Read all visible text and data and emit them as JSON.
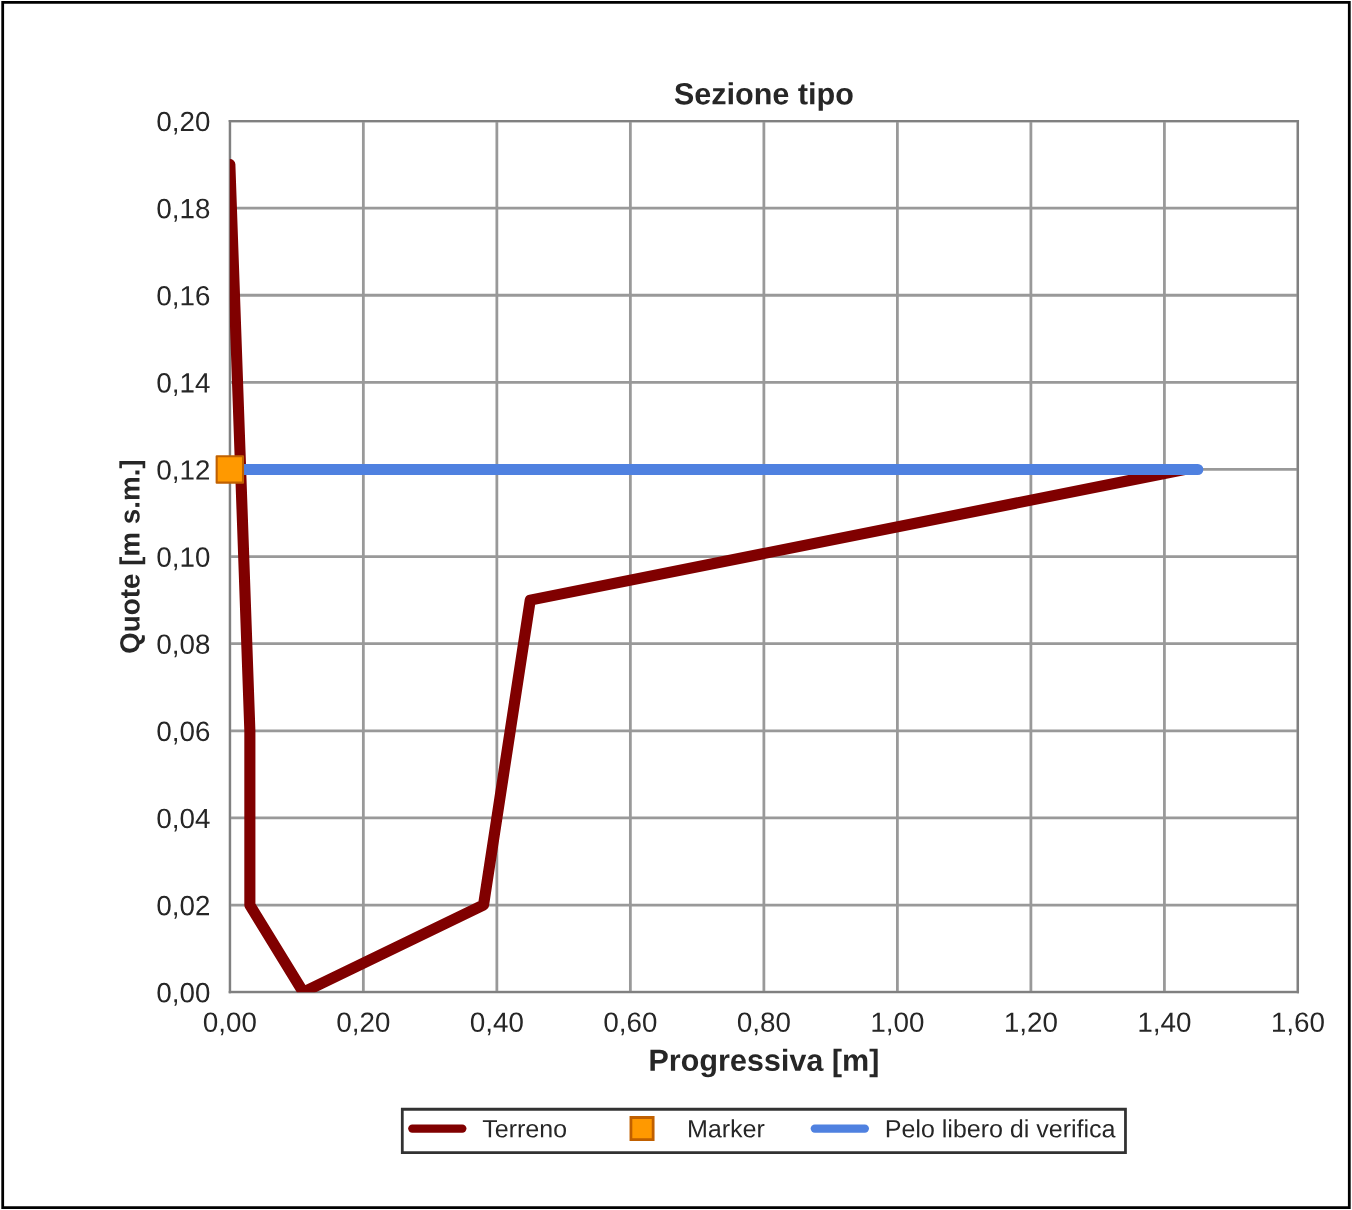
{
  "chart_data": {
    "type": "line",
    "title": "Sezione tipo",
    "xlabel": "Progressiva [m]",
    "ylabel": "Quote [m s.m.]",
    "series": [
      {
        "name": "Terreno",
        "color": "#800000",
        "x": [
          0,
          0.03,
          0.03,
          0.11,
          0.38,
          0.45,
          1.43
        ],
        "values": [
          0.19,
          0.06,
          0.02,
          0.0,
          0.02,
          0.09,
          0.12
        ],
        "marker": "none"
      },
      {
        "name": "Marker",
        "type": "scatter",
        "color": "#ff9900",
        "x": [
          0
        ],
        "values": [
          0.12
        ],
        "marker": "square"
      },
      {
        "name": "Pelo libero di verifica",
        "color": "#4f81e0",
        "x": [
          0,
          1.45
        ],
        "values": [
          0.12,
          0.12
        ],
        "marker": "none"
      }
    ],
    "xlim": [
      0,
      1.6
    ],
    "ylim": [
      0,
      0.2
    ],
    "xticks": [
      {
        "value": 0,
        "label": "0,00"
      },
      {
        "value": 0.2,
        "label": "0,20"
      },
      {
        "value": 0.4,
        "label": "0,40"
      },
      {
        "value": 0.6,
        "label": "0,60"
      },
      {
        "value": 0.8,
        "label": "0,80"
      },
      {
        "value": 1.0,
        "label": "1,00"
      },
      {
        "value": 1.2,
        "label": "1,20"
      },
      {
        "value": 1.4,
        "label": "1,40"
      },
      {
        "value": 1.6,
        "label": "1,60"
      }
    ],
    "yticks": [
      {
        "value": 0,
        "label": "0,00"
      },
      {
        "value": 0.02,
        "label": "0,02"
      },
      {
        "value": 0.04,
        "label": "0,04"
      },
      {
        "value": 0.06,
        "label": "0,06"
      },
      {
        "value": 0.08,
        "label": "0,08"
      },
      {
        "value": 0.1,
        "label": "0,10"
      },
      {
        "value": 0.12,
        "label": "0,12"
      },
      {
        "value": 0.14,
        "label": "0,14"
      },
      {
        "value": 0.16,
        "label": "0,16"
      },
      {
        "value": 0.18,
        "label": "0,18"
      },
      {
        "value": 0.2,
        "label": "0,20"
      }
    ],
    "grid": true,
    "legend": "bottom"
  }
}
